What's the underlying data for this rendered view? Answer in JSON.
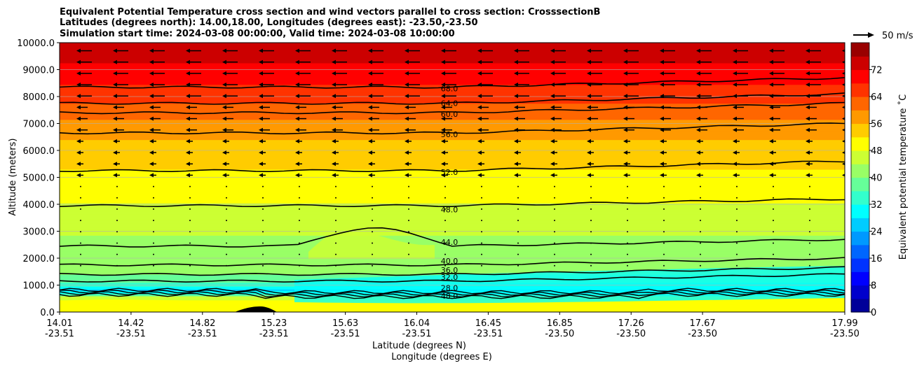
{
  "chart_data": {
    "type": "contourf",
    "title_lines": [
      "Equivalent Potential Temperature cross section and wind vectors parallel to cross section: CrosssectionB",
      "Latitudes (degrees north): 14.00,18.00, Longitudes (degrees east): -23.50,-23.50",
      "Simulation start time: 2024-03-08 00:00:00, Valid time: 2024-03-08 10:00:00"
    ],
    "ylabel": "Altitude (meters)",
    "xlabel_lines": [
      "Latitude (degrees N)",
      "Longitude (degrees E)"
    ],
    "ylim": [
      0,
      10000
    ],
    "yticks": [
      "0.0",
      "1000.0",
      "2000.0",
      "3000.0",
      "4000.0",
      "5000.0",
      "6000.0",
      "7000.0",
      "8000.0",
      "9000.0",
      "10000.0"
    ],
    "xticks": [
      {
        "lat": "14.01",
        "lon": "-23.51"
      },
      {
        "lat": "14.42",
        "lon": "-23.51"
      },
      {
        "lat": "14.82",
        "lon": "-23.51"
      },
      {
        "lat": "15.23",
        "lon": "-23.51"
      },
      {
        "lat": "15.63",
        "lon": "-23.51"
      },
      {
        "lat": "16.04",
        "lon": "-23.51"
      },
      {
        "lat": "16.45",
        "lon": "-23.51"
      },
      {
        "lat": "16.85",
        "lon": "-23.50"
      },
      {
        "lat": "17.26",
        "lon": "-23.50"
      },
      {
        "lat": "17.67",
        "lon": "-23.50"
      },
      {
        "lat": "17.99",
        "lon": "-23.50"
      }
    ],
    "colorbar": {
      "label": "Equivalent potential temperature ˚C",
      "range": [
        0,
        80
      ],
      "step": 4,
      "ticks": [
        "0",
        "8",
        "16",
        "24",
        "32",
        "40",
        "48",
        "56",
        "64",
        "72"
      ]
    },
    "quiver_key": "50 m/s",
    "contour_labels": [
      {
        "text": "68.0",
        "alt": 8300
      },
      {
        "text": "64.0",
        "alt": 7750
      },
      {
        "text": "60.0",
        "alt": 7350
      },
      {
        "text": "56.0",
        "alt": 6600
      },
      {
        "text": "52.0",
        "alt": 5200
      },
      {
        "text": "48.0",
        "alt": 3800
      },
      {
        "text": "44.0",
        "alt": 2600
      },
      {
        "text": "40.0",
        "alt": 1900
      },
      {
        "text": "36.0",
        "alt": 1560
      },
      {
        "text": "32.0",
        "alt": 1300
      },
      {
        "text": "28.0",
        "alt": 900
      },
      {
        "text": "48.0",
        "alt": 600
      }
    ],
    "contour_levels_drawn": [
      {
        "level": 68,
        "alt": 8350
      },
      {
        "level": 64,
        "alt": 7750
      },
      {
        "level": 60,
        "alt": 7400
      },
      {
        "level": 56,
        "alt": 6650
      },
      {
        "level": 52,
        "alt": 5250
      },
      {
        "level": 48,
        "alt": 3950
      },
      {
        "level": 44,
        "alt": 2450
      },
      {
        "level": 40,
        "alt": 1750
      },
      {
        "level": 36,
        "alt": 1400
      },
      {
        "level": 32,
        "alt": 1150
      }
    ]
  }
}
